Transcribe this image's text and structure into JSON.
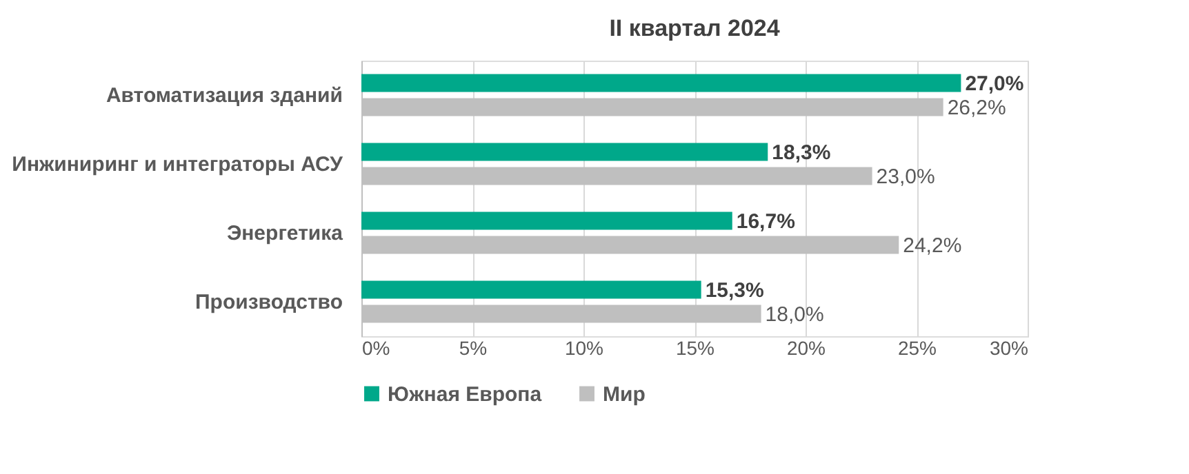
{
  "chart_data": {
    "type": "bar",
    "orientation": "horizontal",
    "title": "II квартал 2024",
    "categories": [
      "Автоматизация зданий",
      "Инжиниринг и интеграторы АСУ",
      "Энергетика",
      "Производство"
    ],
    "series": [
      {
        "name": "Южная Европа",
        "color": "#00a88a",
        "values": [
          27.0,
          18.3,
          16.7,
          15.3
        ],
        "value_labels": [
          "27,0%",
          "18,3%",
          "16,7%",
          "15,3%"
        ]
      },
      {
        "name": "Мир",
        "color": "#bfbfbf",
        "values": [
          26.2,
          23.0,
          24.2,
          18.0
        ],
        "value_labels": [
          "26,2%",
          "23,0%",
          "24,2%",
          "18,0%"
        ]
      }
    ],
    "xlim": [
      0,
      30
    ],
    "xticks": [
      {
        "value": 0,
        "label": "0%"
      },
      {
        "value": 5,
        "label": "5%"
      },
      {
        "value": 10,
        "label": "10%"
      },
      {
        "value": 15,
        "label": "15%"
      },
      {
        "value": 20,
        "label": "20%"
      },
      {
        "value": 25,
        "label": "25%"
      },
      {
        "value": 30,
        "label": "30%"
      }
    ],
    "grid": "x",
    "legend": "bottom"
  }
}
